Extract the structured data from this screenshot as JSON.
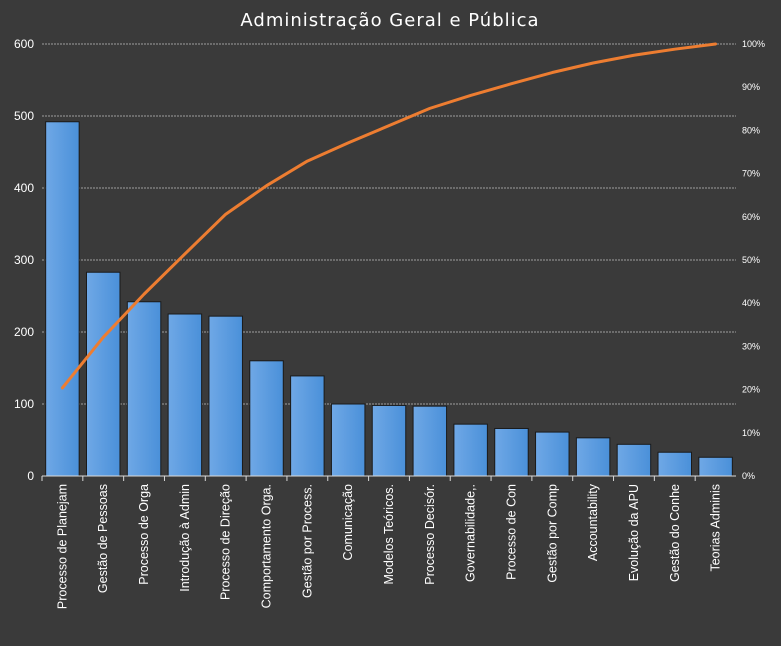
{
  "colors": {
    "background": "#3a3a3a",
    "bar_fill": "#4a90d9",
    "bar_highlight": "#6fa8e6",
    "line": "#ed7d31",
    "gridline": "#bfbfbf",
    "text": "#ffffff"
  },
  "chart_data": {
    "type": "bar",
    "title": "Administração Geral e Pública",
    "xlabel": "",
    "ylabel": "",
    "categories": [
      "Processo de Planejam",
      "Gestão de Pessoas",
      "Processo de Orga",
      "Introdução à Admin",
      "Processo de Direção",
      "Comportamento Orga.",
      "Gestão por Process.",
      "Comunicação",
      "Modelos Teóricos.",
      "Processo Decisór.",
      "Governabilidade,.",
      "Processo de Con",
      "Gestão por Comp",
      "Accountability",
      "Evolução da APU",
      "Gestão do Conhe",
      "Teorias Adminis"
    ],
    "series": [
      {
        "type": "bar",
        "values": [
          492,
          283,
          242,
          225,
          222,
          160,
          139,
          100,
          98,
          97,
          72,
          66,
          61,
          53,
          44,
          33,
          26
        ]
      },
      {
        "type": "line",
        "axis": "secondary",
        "values": [
          20.4,
          32.1,
          42.1,
          51.4,
          60.6,
          67.2,
          72.9,
          77.1,
          81.1,
          85.1,
          88.1,
          90.8,
          93.4,
          95.6,
          97.4,
          98.8,
          100
        ]
      }
    ],
    "ylim": [
      0,
      600
    ],
    "yticks": [
      0,
      100,
      200,
      300,
      400,
      500,
      600
    ],
    "y2lim": [
      0,
      100
    ],
    "y2ticks": [
      "0%",
      "10%",
      "20%",
      "30%",
      "40%",
      "50%",
      "60%",
      "70%",
      "80%",
      "90%",
      "100%"
    ],
    "grid": true,
    "legend": "none"
  }
}
